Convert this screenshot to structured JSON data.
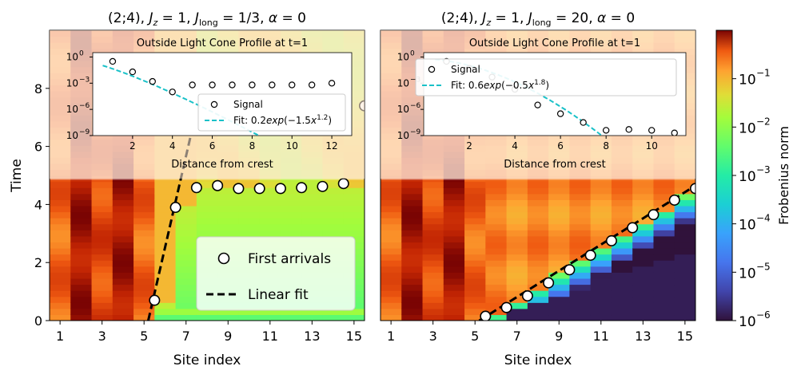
{
  "chart_data": [
    {
      "type": "heatmap",
      "panel": "left",
      "title": "(2;4), J_z = 1, J_long = 1/3, α = 0",
      "title_parts": [
        "(2;4), ",
        "J",
        "z",
        " = 1, ",
        "J",
        "long",
        " = 1/3, ",
        "α",
        " = 0"
      ],
      "xlabel": "Site index",
      "ylabel": "Time",
      "xlim": [
        0.5,
        15.5
      ],
      "ylim": [
        0,
        10
      ],
      "xticks": [
        "1",
        "3",
        "5",
        "7",
        "9",
        "11",
        "13",
        "15"
      ],
      "yticks": [
        "0",
        "2",
        "4",
        "6",
        "8"
      ],
      "first_arrivals": {
        "label": "First arrivals",
        "x": [
          5.5,
          6.5,
          7.5,
          8.5,
          9.5,
          10.5,
          11.5,
          12.5,
          13.5,
          14.5,
          15.5
        ],
        "y": [
          0.7,
          3.9,
          4.58,
          4.65,
          4.55,
          4.55,
          4.55,
          4.58,
          4.62,
          4.72,
          7.4
        ]
      },
      "linear_fit": {
        "label": "Linear fit",
        "x": [
          5.2,
          7.2
        ],
        "y": [
          0.0,
          6.3
        ]
      },
      "inset": {
        "title": "Outside Light Cone Profile at t=1",
        "xlabel": "Distance from crest",
        "xticks": [
          "2",
          "4",
          "6",
          "8",
          "10",
          "12"
        ],
        "ytick_mantissa": "10",
        "ytick_exponents": [
          "0",
          "-3",
          "-6",
          "-9"
        ],
        "xlim": [
          0,
          13
        ],
        "ylim_log10": [
          -9,
          0.5
        ],
        "signal": {
          "label": "Signal",
          "x": [
            1,
            2,
            3,
            4,
            5,
            6,
            7,
            8,
            9,
            10,
            11,
            12
          ],
          "log10_y": [
            -0.5,
            -1.7,
            -2.8,
            -4.0,
            -3.2,
            -3.2,
            -3.2,
            -3.2,
            -3.2,
            -3.2,
            -3.2,
            -3.0
          ]
        },
        "fit": {
          "label_prefix": "Fit: 0.2",
          "label_exp": "exp",
          "label_arg": "(−1.5",
          "label_pow": "1.2",
          "label_close": ")",
          "a": 0.2,
          "b": 1.5,
          "p": 1.2
        }
      }
    },
    {
      "type": "heatmap",
      "panel": "right",
      "title": "(2;4), J_z = 1, J_long = 20, α = 0",
      "title_parts": [
        "(2;4), ",
        "J",
        "z",
        " = 1, ",
        "J",
        "long",
        " = 20, ",
        "α",
        " = 0"
      ],
      "xlabel": "Site index",
      "ylabel": "",
      "xlim": [
        0.5,
        15.5
      ],
      "ylim": [
        0,
        10
      ],
      "xticks": [
        "1",
        "3",
        "5",
        "7",
        "9",
        "11",
        "13",
        "15"
      ],
      "first_arrivals": {
        "label": "First arrivals",
        "x": [
          5.5,
          6.5,
          7.5,
          8.5,
          9.5,
          10.5,
          11.5,
          12.5,
          13.5,
          14.5,
          15.5
        ],
        "y": [
          0.15,
          0.45,
          0.85,
          1.3,
          1.75,
          2.25,
          2.75,
          3.2,
          3.65,
          4.15,
          4.55
        ]
      },
      "linear_fit": {
        "label": "Linear fit",
        "x": [
          5.2,
          15.5
        ],
        "y": [
          0.0,
          4.65
        ]
      },
      "inset": {
        "title": "Outside Light Cone Profile at t=1",
        "xlabel": "Distance from crest",
        "xticks": [
          "2",
          "4",
          "6",
          "8",
          "10"
        ],
        "ytick_mantissa": "10",
        "ytick_exponents": [
          "0",
          "-3",
          "-6",
          "-9"
        ],
        "xlim": [
          0,
          11.5
        ],
        "ylim_log10": [
          -9,
          0.5
        ],
        "signal": {
          "label": "Signal",
          "x": [
            1,
            2,
            3,
            4,
            5,
            6,
            7,
            8,
            9,
            10,
            11
          ],
          "log10_y": [
            -0.5,
            -1.3,
            -2.3,
            -3.7,
            -5.5,
            -6.5,
            -7.5,
            -8.4,
            -8.3,
            -8.4,
            -8.7
          ]
        },
        "fit": {
          "label_prefix": "Fit: 0.6",
          "label_exp": "exp",
          "label_arg": "(−0.5",
          "label_pow": "1.8",
          "label_close": ")",
          "a": 0.6,
          "b": 0.5,
          "p": 1.8
        }
      }
    }
  ],
  "colorbar": {
    "label": "Frobenius norm",
    "tick_mantissa": "10",
    "tick_exponents": [
      "-1",
      "-2",
      "-3",
      "-4",
      "-5",
      "-6"
    ],
    "log10_range": [
      -6,
      0
    ]
  }
}
